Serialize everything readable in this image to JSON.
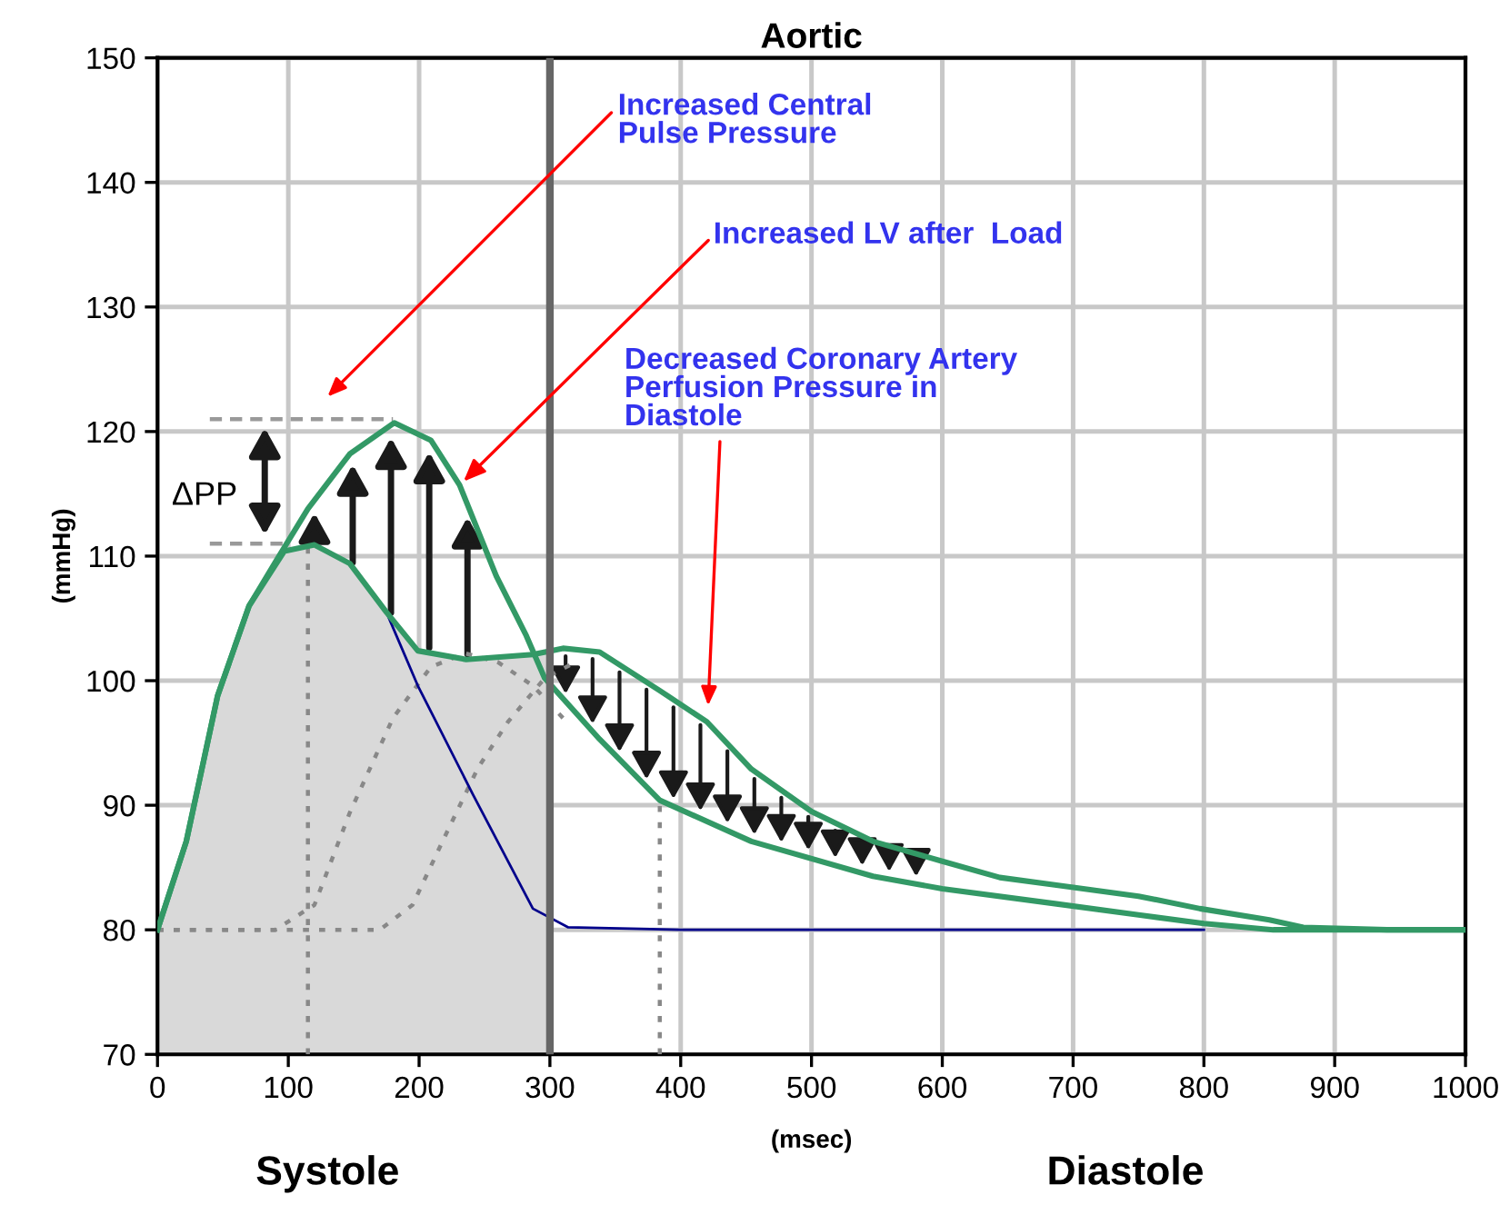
{
  "chart_data": {
    "type": "line",
    "title": "Aortic",
    "xlabel": "(msec)",
    "ylabel": "(mmHg)",
    "xlim": [
      0,
      1000
    ],
    "xticks": [
      0,
      100,
      200,
      300,
      400,
      500,
      600,
      700,
      800,
      900,
      1000
    ],
    "ylim": [
      70,
      150
    ],
    "yticks": [
      70,
      80,
      90,
      100,
      110,
      120,
      130,
      140,
      150
    ],
    "grid": true,
    "legend": false,
    "marker": "none",
    "series": [
      {
        "type": "area",
        "color": "#d9d9d9",
        "x": [
          0,
          22,
          46,
          70,
          97,
          120,
          147,
          175,
          199,
          236,
          270,
          287,
          300
        ],
        "values": [
          80,
          87.1,
          98.8,
          106,
          110.4,
          110.9,
          109.4,
          105.5,
          102.4,
          101.7,
          101.9,
          102.1,
          102.2
        ]
      },
      {
        "color": "#888888",
        "line_style": "dotted",
        "x": [
          0,
          90,
          120,
          147,
          180,
          209,
          235,
          260,
          287,
          310
        ],
        "values": [
          80,
          80,
          82,
          89.4,
          97,
          101.1,
          102.2,
          101.5,
          99.6,
          97
        ]
      },
      {
        "color": "#888888",
        "line_style": "dotted",
        "x": [
          0,
          170,
          195,
          222,
          245,
          268,
          296,
          320
        ],
        "values": [
          80,
          80,
          82,
          88,
          93,
          96.7,
          100.2,
          101.5
        ]
      },
      {
        "color": "#888888",
        "line_style": "dotted",
        "x": [
          115,
          115
        ],
        "values": [
          70,
          111
        ]
      },
      {
        "color": "#888888",
        "line_style": "dotted",
        "x": [
          384,
          384
        ],
        "values": [
          70,
          90.4
        ]
      },
      {
        "color": "#999999",
        "line_style": "dashed",
        "x": [
          40,
          180
        ],
        "values": [
          121,
          121
        ]
      },
      {
        "color": "#999999",
        "line_style": "dashed",
        "x": [
          40,
          100
        ],
        "values": [
          111,
          111
        ]
      },
      {
        "color": "#00008b",
        "x": [
          175,
          199,
          241,
          287,
          314,
          400,
          600,
          800
        ],
        "values": [
          105.5,
          99.6,
          90.9,
          81.7,
          80.2,
          80,
          80,
          80
        ]
      },
      {
        "color": "#339966",
        "x": [
          0,
          22,
          46,
          70,
          97,
          120,
          147,
          175,
          199,
          236,
          287,
          310,
          338,
          384,
          420,
          454,
          500,
          547,
          600,
          644,
          686,
          750,
          797,
          850,
          876,
          940,
          1000
        ],
        "values": [
          80,
          87.1,
          98.8,
          106,
          110.4,
          110.9,
          109.4,
          105.5,
          102.4,
          101.7,
          102.1,
          102.6,
          102.3,
          99.2,
          96.7,
          92.9,
          89.5,
          87.1,
          85.5,
          84.2,
          83.6,
          82.7,
          81.7,
          80.8,
          80.2,
          80,
          80
        ]
      },
      {
        "color": "#339966",
        "x": [
          0,
          22,
          46,
          70,
          90,
          115,
          147,
          181,
          209,
          231,
          259,
          282,
          296,
          338,
          384,
          454,
          547,
          600,
          686,
          750,
          800,
          853,
          900,
          1000
        ],
        "values": [
          80,
          87.1,
          98.8,
          106,
          109.5,
          113.8,
          118.2,
          120.7,
          119.3,
          115.7,
          108.4,
          103.6,
          100.2,
          95.3,
          90.4,
          87.1,
          84.3,
          83.3,
          82.1,
          81.2,
          80.5,
          80,
          80,
          80
        ]
      }
    ],
    "ref_lines": [
      {
        "axis": "x",
        "value": 300,
        "color": "#666666"
      }
    ],
    "annotations": [
      "Increased Central\nPulse Pressure",
      {
        "text": "Increased LV after  Load",
        "x": 234,
        "y": 116
      },
      "Decreased Coronary Artery\nPerfusion Pressure in\nDiastole",
      "ΔPP",
      "Systole",
      "Diastole"
    ]
  }
}
